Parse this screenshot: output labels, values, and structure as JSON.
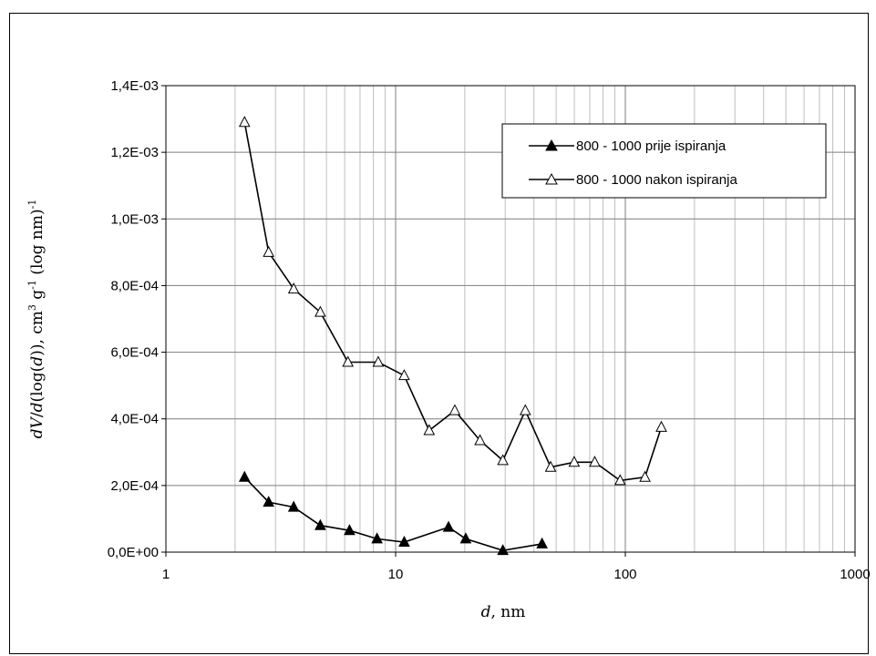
{
  "chart_data": {
    "type": "line",
    "x_scale": "log",
    "xlim": [
      1,
      1000
    ],
    "ylim": [
      0,
      0.0014
    ],
    "x_ticks": [
      1,
      10,
      100,
      1000
    ],
    "x_tick_labels": [
      "1",
      "10",
      "100",
      "1000"
    ],
    "y_ticks": [
      0,
      0.0002,
      0.0004,
      0.0006,
      0.0008,
      0.001,
      0.0012,
      0.0014
    ],
    "y_tick_labels": [
      "0,0E+00",
      "2,0E-04",
      "4,0E-04",
      "6,0E-04",
      "8,0E-04",
      "1,0E-03",
      "1,2E-03",
      "1,4E-03"
    ],
    "xlabel": {
      "italic": "d",
      "rest": ", nm"
    },
    "ylabel": {
      "italic1": "dV",
      "slash": "/",
      "italic2": "d",
      "p1": "(log(",
      "italic3": "d",
      "p2": ")), cm",
      "sup1": "3",
      "p3": " g",
      "sup2": "-1",
      "p4": " (log nm)",
      "sup3": "-1"
    },
    "grid": {
      "major": true,
      "minor_x": true
    },
    "legend_position": "top-right",
    "series": [
      {
        "name": "800 - 1000 prije ispiranja",
        "marker": "filled-triangle",
        "color": "#000000",
        "x": [
          2.2,
          2.8,
          3.6,
          4.7,
          6.3,
          8.3,
          10.9,
          17.0,
          20.2,
          29.3,
          43.4
        ],
        "y": [
          0.000225,
          0.00015,
          0.000135,
          8e-05,
          6.5e-05,
          4e-05,
          3e-05,
          7.5e-05,
          4e-05,
          5e-06,
          2.5e-05
        ]
      },
      {
        "name": "800 - 1000 nakon ispiranja",
        "marker": "open-triangle",
        "color": "#000000",
        "x": [
          2.2,
          2.8,
          3.6,
          4.7,
          6.2,
          8.4,
          10.9,
          14.0,
          18.1,
          23.3,
          29.3,
          36.7,
          47.3,
          59.9,
          73.6,
          94.9,
          121.8,
          143.5
        ],
        "y": [
          0.00129,
          0.0009,
          0.00079,
          0.00072,
          0.00057,
          0.00057,
          0.00053,
          0.000365,
          0.000425,
          0.000335,
          0.000275,
          0.000425,
          0.000255,
          0.00027,
          0.00027,
          0.000215,
          0.000225,
          0.000375
        ]
      }
    ]
  }
}
